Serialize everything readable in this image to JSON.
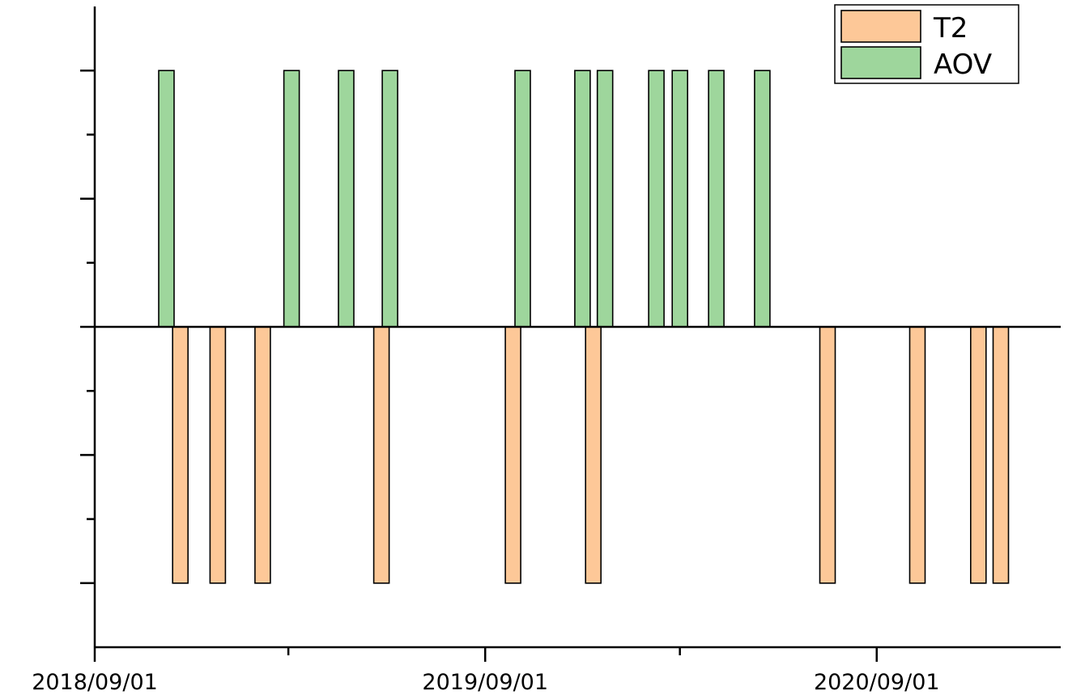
{
  "chart_data": {
    "type": "bar",
    "xlabel": "",
    "ylabel": "",
    "x_axis": {
      "type": "date",
      "range": [
        "2018-09-01",
        "2021-02-20"
      ],
      "major_ticks": [
        "2018-09-01",
        "2019-09-01",
        "2020-09-01"
      ],
      "major_tick_labels": [
        "2018/09/01",
        "2019/09/01",
        "2020/09/01"
      ],
      "minor_ticks": [
        "2019-03-01",
        "2020-03-01",
        "2021-03-01"
      ]
    },
    "y_axis": {
      "range": [
        -2.5,
        2.5
      ],
      "major_ticks": [
        -2,
        -1,
        0,
        1,
        2
      ],
      "minor_ticks": [
        -1.5,
        -0.5,
        0.5,
        1.5
      ],
      "tick_labels_shown": false
    },
    "grid": false,
    "legend": {
      "position": "top-right",
      "entries": [
        "T2",
        "AOV"
      ]
    },
    "series": [
      {
        "name": "T2",
        "color": "#FDC898",
        "x": [
          "2018-11-20",
          "2018-12-25",
          "2019-02-05",
          "2019-05-27",
          "2019-09-27",
          "2019-12-11",
          "2020-07-17",
          "2020-10-09",
          "2020-12-05",
          "2020-12-26"
        ],
        "values": [
          -2,
          -2,
          -2,
          -2,
          -2,
          -2,
          -2,
          -2,
          -2,
          -2
        ]
      },
      {
        "name": "AOV",
        "color": "#9ED69C",
        "x": [
          "2018-11-07",
          "2019-03-04",
          "2019-04-24",
          "2019-06-04",
          "2019-10-06",
          "2019-12-01",
          "2019-12-22",
          "2020-02-08",
          "2020-03-01",
          "2020-04-04",
          "2020-05-17"
        ],
        "values": [
          2,
          2,
          2,
          2,
          2,
          2,
          2,
          2,
          2,
          2,
          2
        ]
      }
    ]
  }
}
